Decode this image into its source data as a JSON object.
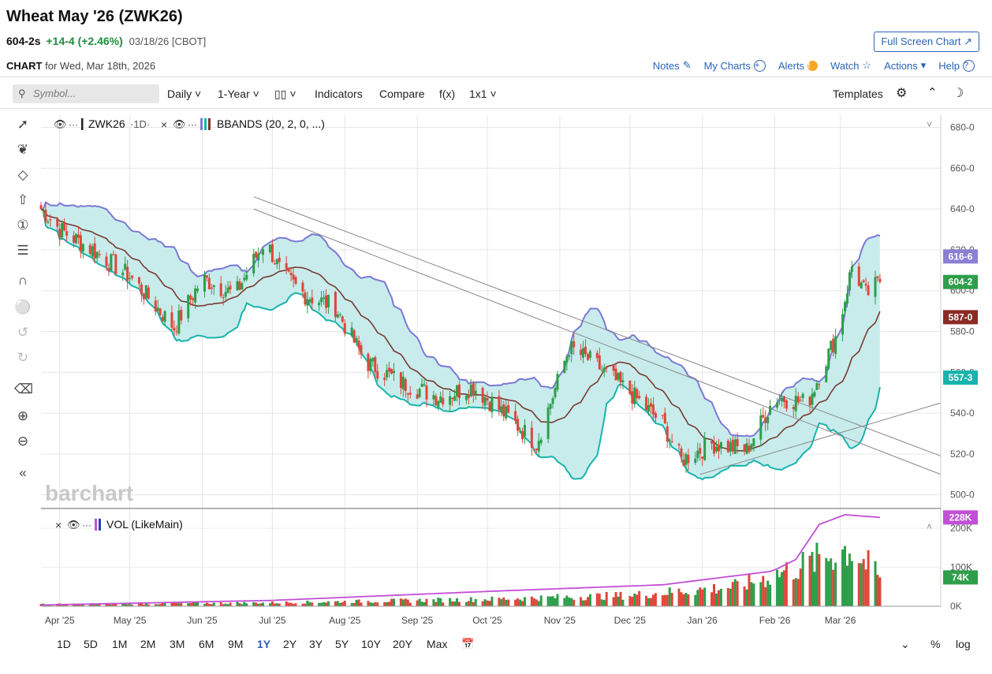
{
  "header": {
    "title": "Wheat May '26 (ZWK26)",
    "last": "604-2s",
    "change": "+14-4 (+2.46%)",
    "meta": "03/18/26 [CBOT]",
    "chart_label": "CHART",
    "chart_for": "for Wed, Mar 18th, 2026",
    "full_screen": "Full Screen Chart"
  },
  "top_links": {
    "notes": "Notes",
    "my_charts": "My Charts",
    "alerts": "Alerts",
    "watch": "Watch",
    "actions": "Actions",
    "help": "Help"
  },
  "toolbar": {
    "search_placeholder": "Symbol...",
    "period": "Daily",
    "range": "1-Year",
    "indicators": "Indicators",
    "compare": "Compare",
    "fx": "f(x)",
    "layout": "1x1",
    "templates": "Templates"
  },
  "legend": {
    "symbol": "ZWK26",
    "interval": "·1D·",
    "bbands": "BBANDS (20, 2, 0, ...)",
    "vol": "VOL (LikeMain)"
  },
  "watermark": "barchart",
  "bottom_ranges": [
    "1D",
    "5D",
    "1M",
    "2M",
    "3M",
    "6M",
    "9M",
    "1Y",
    "2Y",
    "3Y",
    "5Y",
    "10Y",
    "20Y",
    "Max"
  ],
  "active_range": "1Y",
  "bottom_right": {
    "percent": "%",
    "log": "log"
  },
  "colors": {
    "up": "#2e9e4a",
    "down": "#e0463a",
    "band_fill": "#c8ecec",
    "upper_band": "#7b79d4",
    "lower_band": "#19b3ad",
    "middle_band": "#7a3a30",
    "volume_avg": "#c24fd6"
  },
  "chart_data": [
    {
      "type": "candlestick",
      "x_tick_labels": [
        "Apr '25",
        "May '25",
        "Jun '25",
        "Jul '25",
        "Aug '25",
        "Sep '25",
        "Oct '25",
        "Nov '25",
        "Dec '25",
        "Jan '26",
        "Feb '26",
        "Mar '26"
      ],
      "y_tick_labels": [
        "500-0",
        "520-0",
        "540-0",
        "560-0",
        "580-0",
        "600-0",
        "620-0",
        "640-0",
        "660-0",
        "680-0"
      ],
      "ylim": [
        496,
        686
      ],
      "price_badges": [
        {
          "label": "616-6",
          "value": 616.75,
          "color": "#8b7fd4"
        },
        {
          "label": "604-2",
          "value": 604.25,
          "color": "#2e9e4a"
        },
        {
          "label": "587-0",
          "value": 587.0,
          "color": "#8b2b25"
        },
        {
          "label": "557-3",
          "value": 557.4,
          "color": "#19b3ad"
        }
      ],
      "anchors": [
        {
          "date": "2025-03-24",
          "close": 640
        },
        {
          "date": "2025-04-01",
          "close": 630
        },
        {
          "date": "2025-04-15",
          "close": 620
        },
        {
          "date": "2025-05-01",
          "close": 607
        },
        {
          "date": "2025-05-20",
          "close": 582
        },
        {
          "date": "2025-06-01",
          "close": 606
        },
        {
          "date": "2025-06-15",
          "close": 598
        },
        {
          "date": "2025-06-28",
          "close": 625
        },
        {
          "date": "2025-07-05",
          "close": 608
        },
        {
          "date": "2025-07-15",
          "close": 598
        },
        {
          "date": "2025-07-28",
          "close": 592
        },
        {
          "date": "2025-08-01",
          "close": 583
        },
        {
          "date": "2025-08-10",
          "close": 565
        },
        {
          "date": "2025-08-25",
          "close": 555
        },
        {
          "date": "2025-09-10",
          "close": 548
        },
        {
          "date": "2025-09-25",
          "close": 553
        },
        {
          "date": "2025-10-10",
          "close": 538
        },
        {
          "date": "2025-10-22",
          "close": 525
        },
        {
          "date": "2025-11-05",
          "close": 572
        },
        {
          "date": "2025-11-15",
          "close": 565
        },
        {
          "date": "2025-12-01",
          "close": 550
        },
        {
          "date": "2025-12-15",
          "close": 535
        },
        {
          "date": "2025-12-23",
          "close": 517
        },
        {
          "date": "2026-01-05",
          "close": 525
        },
        {
          "date": "2026-01-20",
          "close": 522
        },
        {
          "date": "2026-02-01",
          "close": 548
        },
        {
          "date": "2026-02-15",
          "close": 545
        },
        {
          "date": "2026-02-28",
          "close": 580
        },
        {
          "date": "2026-03-06",
          "close": 612
        },
        {
          "date": "2026-03-12",
          "close": 598
        },
        {
          "date": "2026-03-18",
          "close": 604.25
        }
      ],
      "trendlines": [
        {
          "from": {
            "date": "2025-06-23",
            "value": 646
          },
          "to": {
            "date": "2026-04-13",
            "value": 519
          }
        },
        {
          "from": {
            "date": "2025-06-23",
            "value": 640
          },
          "to": {
            "date": "2026-04-13",
            "value": 510
          }
        },
        {
          "from": {
            "date": "2025-12-31",
            "value": 510
          },
          "to": {
            "date": "2026-04-13",
            "value": 545
          }
        }
      ],
      "bollinger": {
        "period": 20,
        "std_dev": 2
      }
    },
    {
      "type": "bar",
      "name": "VOL (LikeMain)",
      "y_tick_labels": [
        "0K",
        "100K",
        "200K"
      ],
      "ylim": [
        0,
        245000
      ],
      "badges": [
        {
          "label": "228K",
          "value": 228000,
          "color": "#c24fd6"
        },
        {
          "label": "74K",
          "value": 74000,
          "color": "#2e9e4a"
        }
      ],
      "volume_anchors": [
        {
          "date": "2025-03-24",
          "volume": 5000
        },
        {
          "date": "2025-07-01",
          "volume": 9000
        },
        {
          "date": "2025-10-01",
          "volume": 18000
        },
        {
          "date": "2025-12-01",
          "volume": 28000
        },
        {
          "date": "2026-01-15",
          "volume": 50000
        },
        {
          "date": "2026-02-01",
          "volume": 80000
        },
        {
          "date": "2026-02-20",
          "volume": 120000
        },
        {
          "date": "2026-03-05",
          "volume": 150000
        },
        {
          "date": "2026-03-18",
          "volume": 74000
        }
      ],
      "avg_anchors": [
        {
          "date": "2025-03-24",
          "volume": 3000
        },
        {
          "date": "2025-07-01",
          "volume": 15000
        },
        {
          "date": "2025-10-01",
          "volume": 38000
        },
        {
          "date": "2025-12-15",
          "volume": 55000
        },
        {
          "date": "2026-01-31",
          "volume": 90000
        },
        {
          "date": "2026-02-10",
          "volume": 120000
        },
        {
          "date": "2026-02-20",
          "volume": 210000
        },
        {
          "date": "2026-03-03",
          "volume": 235000
        },
        {
          "date": "2026-03-18",
          "volume": 228000
        }
      ]
    }
  ]
}
